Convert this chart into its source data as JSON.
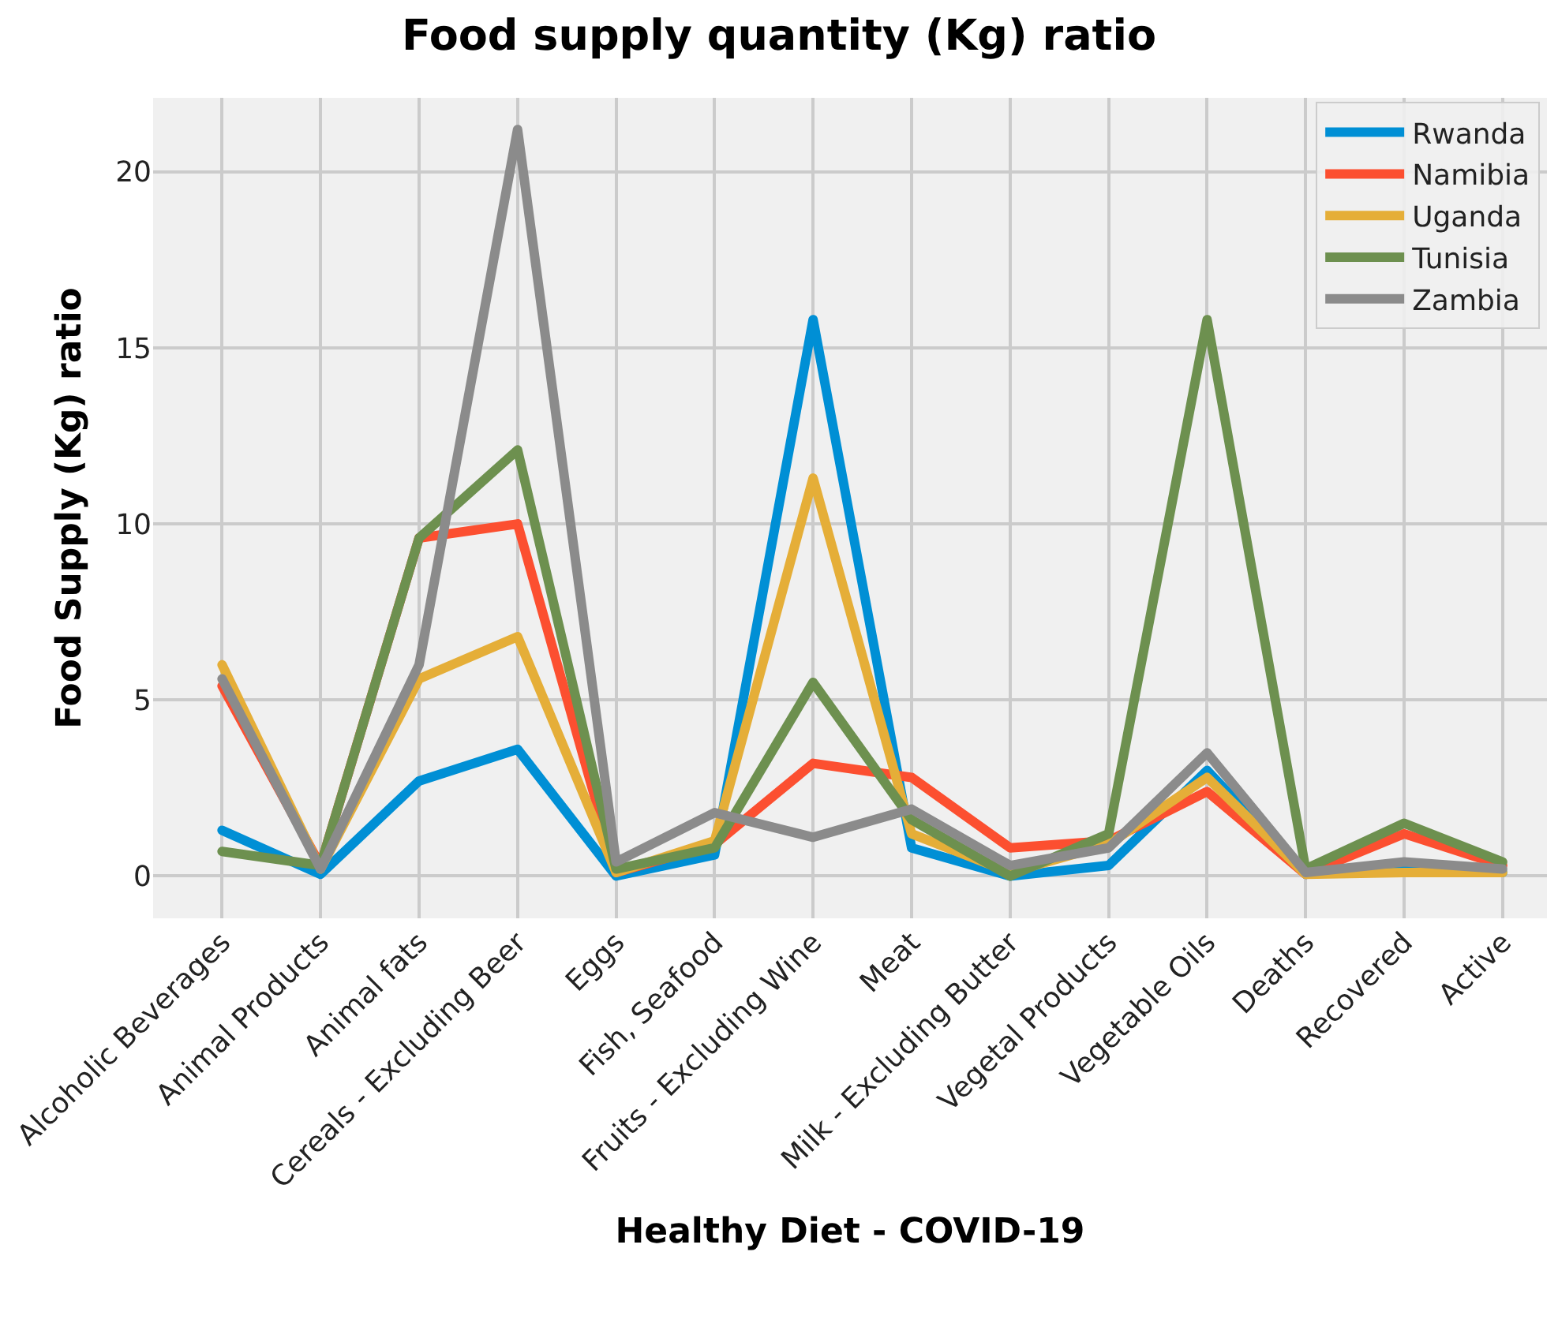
{
  "chart_data": {
    "type": "line",
    "title": "Food supply quantity (Kg) ratio",
    "xlabel": "Healthy Diet - COVID-19",
    "ylabel": "Food Supply (Kg) ratio",
    "categories": [
      "Alcoholic Beverages",
      "Animal Products",
      "Animal fats",
      "Cereals - Excluding Beer",
      "Eggs",
      "Fish, Seafood",
      "Fruits - Excluding Wine",
      "Meat",
      "Milk - Excluding Butter",
      "Vegetal Products",
      "Vegetable Oils",
      "Deaths",
      "Recovered",
      "Active"
    ],
    "series": [
      {
        "name": "Rwanda",
        "color": "#008fd5",
        "values": [
          1.3,
          0.05,
          2.7,
          3.6,
          0.0,
          0.6,
          15.8,
          0.8,
          0.0,
          0.3,
          3.0,
          0.05,
          0.3,
          0.1
        ]
      },
      {
        "name": "Namibia",
        "color": "#fc4f30",
        "values": [
          5.4,
          0.3,
          9.6,
          10.0,
          0.1,
          0.9,
          3.2,
          2.8,
          0.8,
          1.0,
          2.4,
          0.05,
          1.2,
          0.3
        ]
      },
      {
        "name": "Uganda",
        "color": "#e5ae38",
        "values": [
          6.0,
          0.2,
          5.6,
          6.8,
          0.1,
          1.0,
          11.3,
          1.2,
          0.1,
          0.9,
          2.8,
          0.05,
          0.1,
          0.1
        ]
      },
      {
        "name": "Tunisia",
        "color": "#6d904f",
        "values": [
          0.7,
          0.3,
          9.6,
          12.1,
          0.2,
          0.8,
          5.5,
          1.6,
          0.0,
          1.2,
          15.8,
          0.2,
          1.5,
          0.4
        ]
      },
      {
        "name": "Zambia",
        "color": "#8b8b8b",
        "values": [
          5.6,
          0.2,
          6.0,
          21.2,
          0.4,
          1.8,
          1.1,
          1.9,
          0.3,
          0.8,
          3.5,
          0.1,
          0.4,
          0.2
        ]
      }
    ],
    "ylim": [
      -1.2,
      22.1
    ],
    "yticks": [
      0,
      5,
      10,
      15,
      20
    ],
    "grid": true,
    "legend": "top right",
    "marker": "none",
    "line_style": "solid"
  }
}
